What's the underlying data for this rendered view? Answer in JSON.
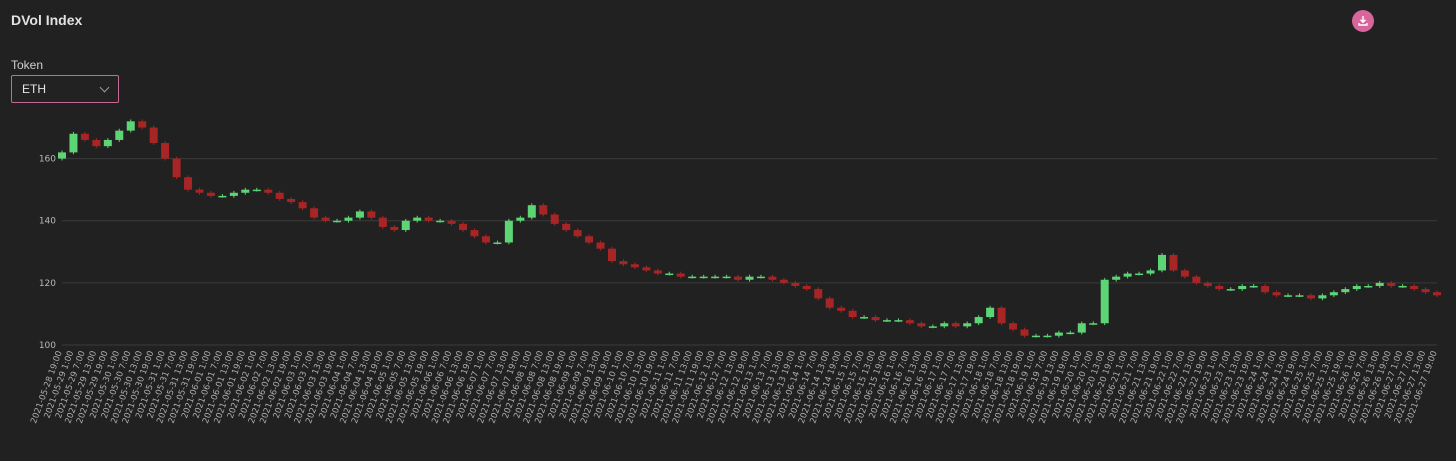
{
  "header": {
    "title": "DVol Index",
    "download_icon": "download-icon"
  },
  "filter": {
    "label": "Token",
    "selected": "ETH"
  },
  "colors": {
    "up": "#5ed575",
    "down": "#a82525",
    "accent": "#d9669b",
    "grid": "#3a3a3a"
  },
  "chart_data": {
    "type": "candlestick",
    "title": "",
    "xlabel": "",
    "ylabel": "",
    "ylim": [
      100,
      175
    ],
    "y_ticks": [
      100,
      120,
      140,
      160
    ],
    "grid": true,
    "x_tick_labels": [
      "2021-05-28 19:00",
      "2021-05-29 1:00",
      "2021-05-29 7:00",
      "2021-05-29 13:00",
      "2021-05-29 19:00",
      "2021-05-30 1:00",
      "2021-05-30 7:00",
      "2021-05-30 13:00",
      "2021-05-30 19:00",
      "2021-05-31 1:00",
      "2021-05-31 7:00",
      "2021-05-31 13:00",
      "2021-05-31 19:00",
      "2021-06-01 1:00",
      "2021-06-01 7:00",
      "2021-06-01 13:00",
      "2021-06-01 19:00",
      "2021-06-02 1:00",
      "2021-06-02 7:00",
      "2021-06-02 13:00",
      "2021-06-02 19:00",
      "2021-06-03 1:00",
      "2021-06-03 7:00",
      "2021-06-03 13:00",
      "2021-06-03 19:00",
      "2021-06-04 1:00",
      "2021-06-04 7:00",
      "2021-06-04 13:00",
      "2021-06-04 19:00",
      "2021-06-05 1:00",
      "2021-06-05 7:00",
      "2021-06-05 13:00",
      "2021-06-05 19:00",
      "2021-06-06 1:00",
      "2021-06-06 7:00",
      "2021-06-06 13:00",
      "2021-06-06 19:00",
      "2021-06-07 1:00",
      "2021-06-07 7:00",
      "2021-06-07 13:00",
      "2021-06-07 19:00",
      "2021-06-08 1:00",
      "2021-06-08 7:00",
      "2021-06-08 13:00",
      "2021-06-08 19:00",
      "2021-06-09 1:00",
      "2021-06-09 7:00",
      "2021-06-09 13:00",
      "2021-06-09 19:00",
      "2021-06-10 1:00",
      "2021-06-10 7:00",
      "2021-06-10 13:00",
      "2021-06-10 19:00",
      "2021-06-11 1:00",
      "2021-06-11 7:00",
      "2021-06-11 13:00",
      "2021-06-11 19:00",
      "2021-06-12 1:00",
      "2021-06-12 7:00",
      "2021-06-12 13:00",
      "2021-06-12 19:00",
      "2021-06-13 1:00",
      "2021-06-13 7:00",
      "2021-06-13 13:00",
      "2021-06-13 19:00",
      "2021-06-14 1:00",
      "2021-06-14 7:00",
      "2021-06-14 13:00",
      "2021-06-14 19:00",
      "2021-06-15 1:00",
      "2021-06-15 7:00",
      "2021-06-15 13:00",
      "2021-06-15 19:00",
      "2021-06-16 1:00",
      "2021-06-16 7:00",
      "2021-06-16 13:00",
      "2021-06-16 19:00",
      "2021-06-17 1:00",
      "2021-06-17 7:00",
      "2021-06-17 13:00",
      "2021-06-17 19:00",
      "2021-06-18 1:00",
      "2021-06-18 7:00",
      "2021-06-18 13:00",
      "2021-06-18 19:00",
      "2021-06-19 1:00",
      "2021-06-19 7:00",
      "2021-06-19 13:00",
      "2021-06-19 19:00",
      "2021-06-20 1:00",
      "2021-06-20 7:00",
      "2021-06-20 13:00",
      "2021-06-20 19:00",
      "2021-06-21 1:00",
      "2021-06-21 7:00",
      "2021-06-21 13:00",
      "2021-06-21 19:00",
      "2021-06-22 1:00",
      "2021-06-22 7:00",
      "2021-06-22 13:00",
      "2021-06-22 19:00",
      "2021-06-23 1:00",
      "2021-06-23 7:00",
      "2021-06-23 13:00",
      "2021-06-23 19:00",
      "2021-06-24 1:00",
      "2021-06-24 7:00",
      "2021-06-24 13:00",
      "2021-06-24 19:00",
      "2021-06-25 1:00",
      "2021-06-25 7:00",
      "2021-06-25 13:00",
      "2021-06-25 19:00",
      "2021-06-26 1:00",
      "2021-06-26 7:00",
      "2021-06-26 13:00",
      "2021-06-26 19:00",
      "2021-06-27 1:00",
      "2021-06-27 7:00",
      "2021-06-27 13:00",
      "2021-06-27 19:00"
    ],
    "series": [
      {
        "values": [
          162,
          168,
          166,
          164,
          166,
          169,
          172,
          170,
          165,
          160,
          154,
          150,
          149,
          148,
          148,
          149,
          150,
          150,
          149,
          147,
          146,
          144,
          141,
          140,
          140,
          141,
          143,
          141,
          138,
          137,
          140,
          141,
          140,
          140,
          139,
          137,
          135,
          133,
          133,
          140,
          141,
          145,
          142,
          139,
          137,
          135,
          133,
          131,
          127,
          126,
          125,
          124,
          123,
          123,
          122,
          122,
          122,
          122,
          122,
          121,
          122,
          122,
          121,
          120,
          119,
          118,
          115,
          112,
          111,
          109,
          109,
          108,
          108,
          108,
          107,
          106,
          106,
          107,
          106,
          107,
          109,
          112,
          107,
          105,
          103,
          103,
          103,
          104,
          104,
          107,
          107,
          121,
          122,
          123,
          123,
          124,
          129,
          124,
          122,
          120,
          119,
          118,
          118,
          119,
          119,
          117,
          116,
          116,
          116,
          115,
          116,
          117,
          118,
          119,
          119,
          120,
          119,
          119,
          118,
          117,
          116
        ]
      }
    ]
  }
}
